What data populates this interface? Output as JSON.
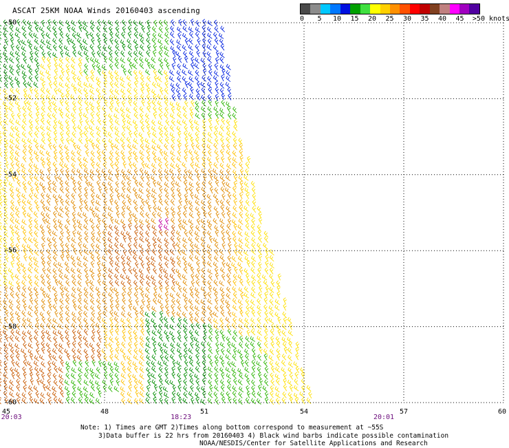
{
  "header": {
    "title": "ASCAT 25KM NOAA Winds 20160403 ascending"
  },
  "legend": {
    "colors": [
      "#4a4a4a",
      "#8c8c8c",
      "#00c8ff",
      "#0078ff",
      "#0010e0",
      "#00a000",
      "#40e040",
      "#ffff00",
      "#ffd000",
      "#ff9000",
      "#ff5000",
      "#ff0000",
      "#c00000",
      "#804020",
      "#c08080",
      "#ff00ff",
      "#a000c0",
      "#5000a0"
    ],
    "ticks": [
      {
        "label": "0",
        "value": 0
      },
      {
        "label": "5",
        "value": 5
      },
      {
        "label": "10",
        "value": 10
      },
      {
        "label": "15",
        "value": 15
      },
      {
        "label": "20",
        "value": 20
      },
      {
        "label": "25",
        "value": 25
      },
      {
        "label": "30",
        "value": 30
      },
      {
        "label": "35",
        "value": 35
      },
      {
        "label": "40",
        "value": 40
      },
      {
        "label": "45",
        "value": 45
      },
      {
        "label": ">50 knots",
        "value": 50
      }
    ]
  },
  "map": {
    "lat_labels": [
      {
        "label": "-50",
        "lat": -50
      },
      {
        "label": "-52",
        "lat": -52
      },
      {
        "label": "-54",
        "lat": -54
      },
      {
        "label": "-56",
        "lat": -56
      },
      {
        "label": "-58",
        "lat": -58
      },
      {
        "label": "-60",
        "lat": -60
      }
    ],
    "lon_labels": [
      {
        "label": "45",
        "lon": 45
      },
      {
        "label": "48",
        "lon": 48
      },
      {
        "label": "51",
        "lon": 51
      },
      {
        "label": "54",
        "lon": 54
      },
      {
        "label": "57",
        "lon": 57
      },
      {
        "label": "60",
        "lon": 60
      }
    ],
    "time_labels": [
      {
        "label": "20:03",
        "lon": 45.2
      },
      {
        "label": "18:23",
        "lon": 50.3
      },
      {
        "label": "20:01",
        "lon": 56.4
      }
    ],
    "lat_range": [
      -60,
      -50
    ],
    "lon_range": [
      45,
      60
    ],
    "grid": "dotted",
    "wind_colors": {
      "dark_green": "#008c00",
      "green": "#2ab400",
      "yellow": "#ffe000",
      "gold": "#ffc000",
      "orange": "#e08a00",
      "dark_orange": "#c85a00",
      "brown": "#a03010",
      "blue": "#0020e0",
      "magenta": "#c000a0"
    }
  },
  "footer": {
    "note_1": "Note: 1) Times are GMT 2)Times along bottom correspond to measurement at ~55S",
    "note_2": "3)Data buffer is 22 hrs from 20160403 4) Black wind barbs indicate possible contamination",
    "note_3": "NOAA/NESDIS/Center for Satellite Applications and Research"
  }
}
